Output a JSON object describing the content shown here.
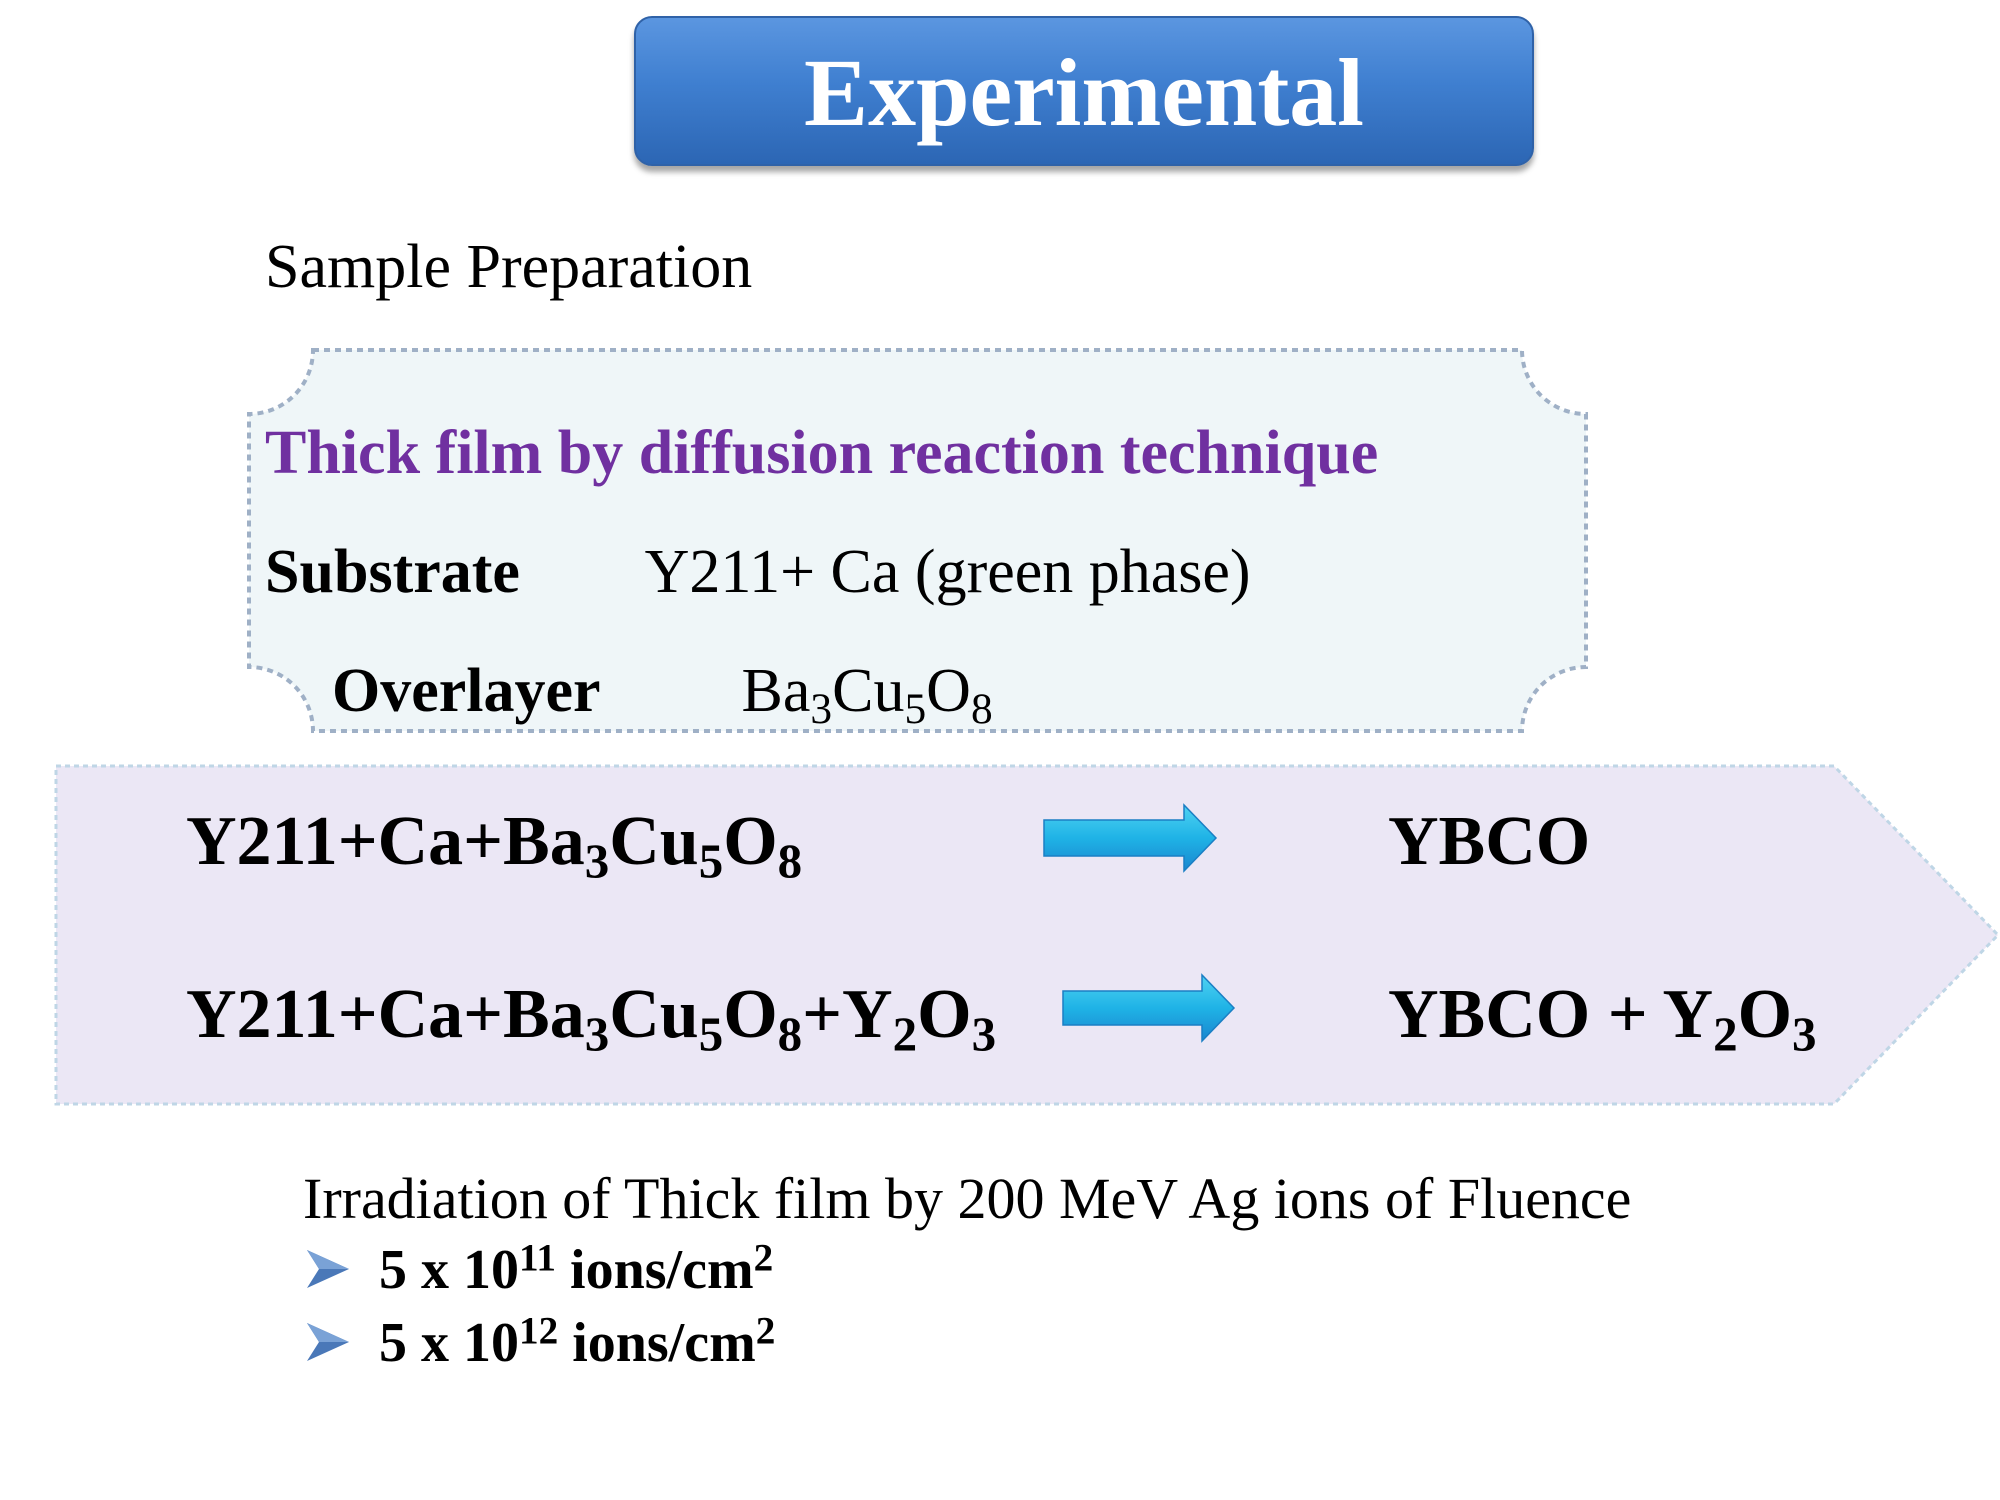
{
  "title": "Experimental",
  "section_heading": "Sample Preparation",
  "prep_box": {
    "heading": "Thick film by diffusion reaction technique",
    "substrate_label": "Substrate",
    "substrate_value": "Y211+ Ca (green phase)",
    "overlayer_label": "Overlayer",
    "overlayer_value": {
      "p1": "Ba",
      "s1": "3",
      "p2": "Cu",
      "s2": "5",
      "p3": "O",
      "s3": "8"
    }
  },
  "reactions": [
    {
      "reactant": {
        "p1": "Y211+Ca+Ba",
        "s1": "3",
        "p2": "Cu",
        "s2": "5",
        "p3": "O",
        "s3": "8"
      },
      "product": {
        "p1": "YBCO"
      }
    },
    {
      "reactant": {
        "p1": "Y211+Ca+Ba",
        "s1": "3",
        "p2": "Cu",
        "s2": "5",
        "p3": "O",
        "s3": "8",
        "p4": "+Y",
        "s4": "2",
        "p5": "O",
        "s5": "3"
      },
      "product": {
        "p1": "YBCO + Y",
        "s1": "2",
        "p2": "O",
        "s2": "3"
      }
    }
  ],
  "irradiation": {
    "text": "Irradiation of Thick film by 200 MeV Ag ions of Fluence",
    "items": [
      {
        "pre": "5 x 10",
        "exp": "11",
        "unit": " ions/cm",
        "unit_exp": "2"
      },
      {
        "pre": "5 x 10",
        "exp": "12",
        "unit": " ions/cm",
        "unit_exp": "2"
      }
    ]
  },
  "colors": {
    "title_bg": "#3f7fd0",
    "heading_purple": "#7030a0",
    "prep_box_fill": "#eff6f8",
    "reaction_band_fill": "#ebe7f5",
    "arrow_cyan": "#1fb3e6",
    "bullet_blue": "#4a78b8"
  },
  "icons": {
    "reaction_arrow": "right-arrow-icon",
    "bullet": "arrowhead-bullet-icon"
  }
}
